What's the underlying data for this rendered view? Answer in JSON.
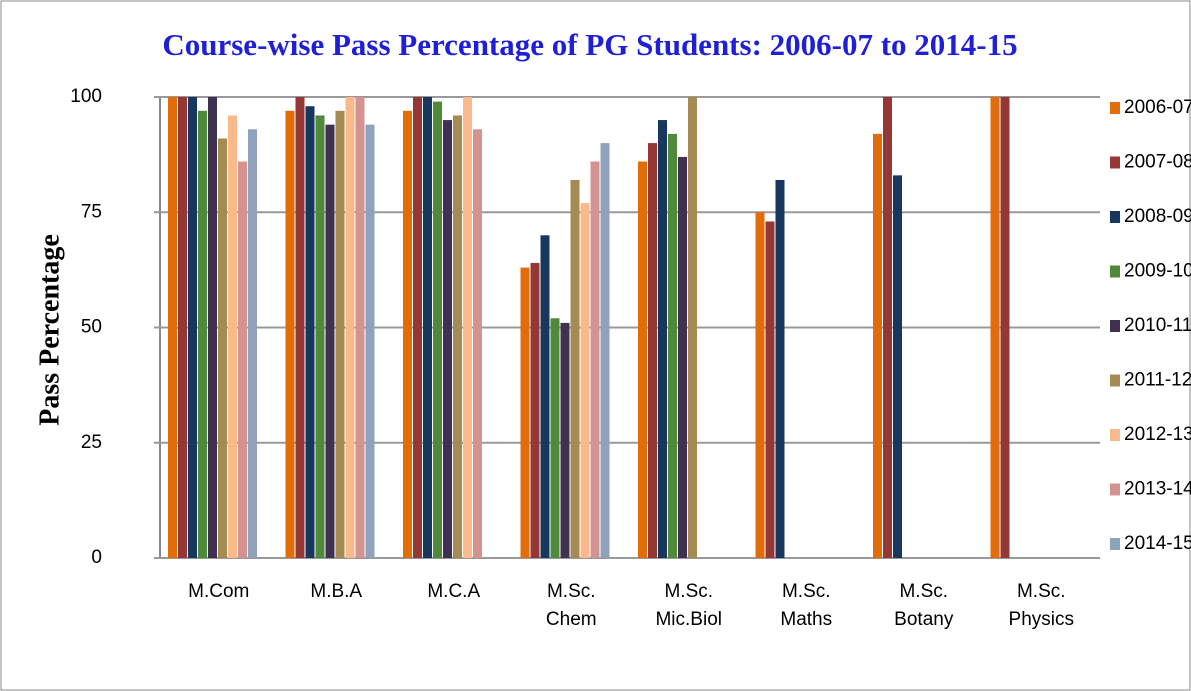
{
  "chart_data": {
    "type": "bar",
    "title": "Course-wise Pass Percentage of PG Students: 2006-07 to 2014-15",
    "y_label": "Pass Percentage",
    "categories": [
      "M.Com",
      "M.B.A",
      "M.C.A",
      "M.Sc. Chem",
      "M.Sc. Mic.Biol",
      "M.Sc. Maths",
      "M.Sc. Botany",
      "M.Sc. Physics"
    ],
    "series": [
      {
        "name": "2006-07",
        "color": "#e36c0a",
        "values": [
          100,
          97,
          97,
          63,
          86,
          75,
          92,
          100
        ]
      },
      {
        "name": "2007-08",
        "color": "#953735",
        "values": [
          100,
          100,
          100,
          64,
          90,
          73,
          100,
          100
        ]
      },
      {
        "name": "2008-09",
        "color": "#17375e",
        "values": [
          100,
          98,
          100,
          70,
          95,
          82,
          83,
          null
        ]
      },
      {
        "name": "2009-10",
        "color": "#4f8a3a",
        "values": [
          97,
          96,
          99,
          52,
          92,
          null,
          null,
          null
        ]
      },
      {
        "name": "2010-11",
        "color": "#403152",
        "values": [
          100,
          94,
          95,
          51,
          87,
          null,
          null,
          null
        ]
      },
      {
        "name": "2011-12",
        "color": "#a38b52",
        "values": [
          91,
          97,
          96,
          82,
          100,
          null,
          null,
          null
        ]
      },
      {
        "name": "2012-13",
        "color": "#fab98a",
        "values": [
          96,
          100,
          100,
          77,
          null,
          null,
          null,
          null
        ]
      },
      {
        "name": "2013-14",
        "color": "#d49391",
        "values": [
          86,
          100,
          93,
          86,
          null,
          null,
          null,
          null
        ]
      },
      {
        "name": "2014-15",
        "color": "#8fa2bb",
        "values": [
          93,
          94,
          null,
          90,
          null,
          null,
          null,
          null
        ]
      }
    ],
    "ylim": [
      0,
      100
    ],
    "yticks": [
      0,
      25,
      50,
      75,
      100
    ],
    "grid": true,
    "legend": "right"
  }
}
